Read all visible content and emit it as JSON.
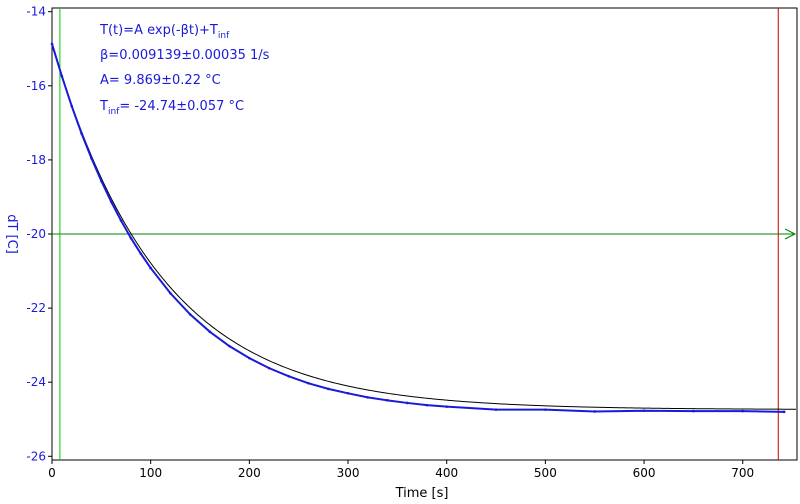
{
  "chart_data": {
    "type": "line",
    "xlabel": "Time [s]",
    "ylabel": "dT [C]",
    "xlim": [
      0,
      755
    ],
    "ylim": [
      -26.1,
      -13.9
    ],
    "x_ticks": [
      0,
      100,
      200,
      300,
      400,
      500,
      600,
      700
    ],
    "y_ticks": [
      -14,
      -16,
      -18,
      -20,
      -22,
      -24,
      -26
    ],
    "grid": false,
    "colors": {
      "data": "#1a1adb",
      "fit": "#000000",
      "start_marker": "#00cc00",
      "end_marker": "#cc0000",
      "ref_line": "#008000",
      "axis_text": "#1a1adb"
    },
    "model": {
      "A": 9.869,
      "beta": 0.009139,
      "T_inf": -24.74
    },
    "x": [
      0,
      10,
      20,
      30,
      40,
      50,
      60,
      70,
      80,
      90,
      100,
      120,
      140,
      160,
      180,
      200,
      220,
      240,
      260,
      280,
      300,
      320,
      340,
      360,
      380,
      400,
      450,
      500,
      550,
      600,
      650,
      700,
      742
    ],
    "y": [
      -14.87,
      -15.74,
      -16.55,
      -17.29,
      -17.96,
      -18.57,
      -19.13,
      -19.64,
      -20.11,
      -20.53,
      -20.92,
      -21.6,
      -22.17,
      -22.64,
      -23.03,
      -23.35,
      -23.62,
      -23.84,
      -24.03,
      -24.18,
      -24.3,
      -24.41,
      -24.49,
      -24.56,
      -24.62,
      -24.66,
      -24.74,
      -24.74,
      -24.79,
      -24.77,
      -24.78,
      -24.78,
      -24.8
    ],
    "ref_y": -20,
    "marker_x_start": 8,
    "marker_x_end": 736,
    "annotations": {
      "equation": {
        "main": "T(t)=A exp(-βt)+T",
        "sub": "inf"
      },
      "beta": "β=0.009139±0.00035 1/s",
      "a": "A= 9.869±0.22 °C",
      "tinf": {
        "main": "T",
        "sub": "inf",
        "rest": "= -24.74±0.057 °C"
      }
    }
  }
}
